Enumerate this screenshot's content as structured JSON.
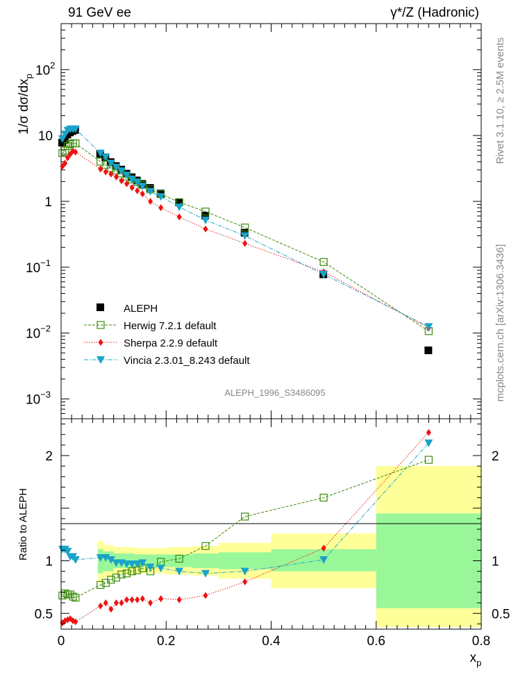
{
  "header": {
    "left": "91 GeV ee",
    "right": "γ*/Z (Hadronic)"
  },
  "side_labels": {
    "rivet": "Rivet 3.1.10, ≥ 2.5M events",
    "mcplots": "mcplots.cern.ch [arXiv:1306.3436]"
  },
  "chart_data": [
    {
      "type": "scatter",
      "panel": "main",
      "ylabel": "1/σ dσ/dx",
      "ylabel_sub": "p",
      "yscale": "log",
      "ylim": [
        0.0005,
        500
      ],
      "xlim": [
        0,
        0.8
      ],
      "ytick_labels": [
        {
          "value": 0.001,
          "base": "10",
          "exp": "−3"
        },
        {
          "value": 0.01,
          "base": "10",
          "exp": "−2"
        },
        {
          "value": 0.1,
          "base": "10",
          "exp": "−1"
        },
        {
          "value": 1,
          "base": "1",
          "exp": ""
        },
        {
          "value": 10,
          "base": "10",
          "exp": ""
        },
        {
          "value": 100,
          "base": "10",
          "exp": "2"
        }
      ],
      "watermark": "ALEPH_1996_S3486095",
      "legend_position": "lower-left",
      "series": [
        {
          "name": "ALEPH",
          "color": "#000000",
          "marker": "filled-square",
          "points": [
            [
              0.0025,
              7.7
            ],
            [
              0.0075,
              8.5
            ],
            [
              0.0125,
              10.2
            ],
            [
              0.0175,
              11.0
            ],
            [
              0.0225,
              11.6
            ],
            [
              0.0275,
              12.0
            ],
            [
              0.075,
              5.2
            ],
            [
              0.085,
              4.6
            ],
            [
              0.095,
              3.9
            ],
            [
              0.105,
              3.4
            ],
            [
              0.115,
              3.0
            ],
            [
              0.125,
              2.6
            ],
            [
              0.135,
              2.3
            ],
            [
              0.145,
              2.05
            ],
            [
              0.155,
              1.82
            ],
            [
              0.17,
              1.58
            ],
            [
              0.19,
              1.3
            ],
            [
              0.225,
              0.95
            ],
            [
              0.275,
              0.6
            ],
            [
              0.35,
              0.33
            ],
            [
              0.5,
              0.077
            ],
            [
              0.7,
              0.0054
            ]
          ]
        },
        {
          "name": "Herwig 7.2.1 default",
          "color": "#3a8a0a",
          "marker": "open-square",
          "points": [
            [
              0.0025,
              5.4
            ],
            [
              0.0075,
              5.9
            ],
            [
              0.0125,
              6.9
            ],
            [
              0.0175,
              7.4
            ],
            [
              0.0225,
              7.6
            ],
            [
              0.0275,
              7.6
            ],
            [
              0.075,
              4.0
            ],
            [
              0.085,
              3.6
            ],
            [
              0.095,
              3.2
            ],
            [
              0.105,
              2.95
            ],
            [
              0.115,
              2.65
            ],
            [
              0.125,
              2.38
            ],
            [
              0.135,
              2.15
            ],
            [
              0.145,
              1.95
            ],
            [
              0.155,
              1.78
            ],
            [
              0.17,
              1.52
            ],
            [
              0.19,
              1.29
            ],
            [
              0.225,
              0.97
            ],
            [
              0.275,
              0.7
            ],
            [
              0.35,
              0.4
            ],
            [
              0.5,
              0.12
            ],
            [
              0.7,
              0.0107
            ]
          ]
        },
        {
          "name": "Sherpa 2.2.9 default",
          "color": "#ee1111",
          "marker": "filled-diamond",
          "points": [
            [
              0.0025,
              3.4
            ],
            [
              0.0075,
              3.8
            ],
            [
              0.0125,
              4.6
            ],
            [
              0.0175,
              5.2
            ],
            [
              0.0225,
              5.8
            ],
            [
              0.0275,
              5.6
            ],
            [
              0.075,
              3.1
            ],
            [
              0.085,
              2.8
            ],
            [
              0.095,
              2.6
            ],
            [
              0.105,
              2.35
            ],
            [
              0.115,
              2.05
            ],
            [
              0.125,
              1.85
            ],
            [
              0.135,
              1.62
            ],
            [
              0.145,
              1.45
            ],
            [
              0.155,
              1.3
            ],
            [
              0.17,
              1.0
            ],
            [
              0.19,
              0.8
            ],
            [
              0.225,
              0.58
            ],
            [
              0.275,
              0.38
            ],
            [
              0.35,
              0.23
            ],
            [
              0.5,
              0.085
            ],
            [
              0.7,
              0.012
            ]
          ]
        },
        {
          "name": "Vincia 2.3.01_8.243 default",
          "color": "#1aa3c8",
          "marker": "filled-triangle-down",
          "points": [
            [
              0.0025,
              8.9
            ],
            [
              0.0075,
              10.5
            ],
            [
              0.0125,
              12.0
            ],
            [
              0.0175,
              12.5
            ],
            [
              0.0225,
              12.6
            ],
            [
              0.0275,
              12.6
            ],
            [
              0.075,
              5.4
            ],
            [
              0.085,
              4.7
            ],
            [
              0.095,
              3.8
            ],
            [
              0.105,
              3.3
            ],
            [
              0.115,
              2.9
            ],
            [
              0.125,
              2.5
            ],
            [
              0.135,
              2.18
            ],
            [
              0.145,
              1.95
            ],
            [
              0.155,
              1.7
            ],
            [
              0.17,
              1.42
            ],
            [
              0.19,
              1.18
            ],
            [
              0.225,
              0.82
            ],
            [
              0.275,
              0.52
            ],
            [
              0.35,
              0.3
            ],
            [
              0.5,
              0.078
            ],
            [
              0.7,
              0.0125
            ]
          ]
        }
      ]
    },
    {
      "type": "scatter",
      "panel": "ratio",
      "ylabel": "Ratio to ALEPH",
      "xlabel": "x",
      "xlabel_sub": "p",
      "ylim": [
        0.35,
        2.35
      ],
      "xlim": [
        0,
        0.8
      ],
      "xtick_labels": [
        "0",
        "0.2",
        "0.4",
        "0.6",
        "0.8"
      ],
      "ytick_labels": [
        "0.5",
        "1",
        "2"
      ],
      "bands": {
        "colors": {
          "inner": "#99f799",
          "outer": "#ffff99"
        },
        "bins": [
          {
            "x": [
              0.07,
              0.08
            ],
            "inner": [
              0.88,
              1.11
            ],
            "outer": [
              0.79,
              1.19
            ]
          },
          {
            "x": [
              0.08,
              0.1
            ],
            "inner": [
              0.9,
              1.09
            ],
            "outer": [
              0.84,
              1.15
            ]
          },
          {
            "x": [
              0.1,
              0.14
            ],
            "inner": [
              0.93,
              1.07
            ],
            "outer": [
              0.87,
              1.13
            ]
          },
          {
            "x": [
              0.14,
              0.2
            ],
            "inner": [
              0.94,
              1.06
            ],
            "outer": [
              0.88,
              1.12
            ]
          },
          {
            "x": [
              0.2,
              0.25
            ],
            "inner": [
              0.94,
              1.06
            ],
            "outer": [
              0.87,
              1.13
            ]
          },
          {
            "x": [
              0.25,
              0.3
            ],
            "inner": [
              0.93,
              1.07
            ],
            "outer": [
              0.86,
              1.14
            ]
          },
          {
            "x": [
              0.3,
              0.4
            ],
            "inner": [
              0.92,
              1.08
            ],
            "outer": [
              0.83,
              1.17
            ]
          },
          {
            "x": [
              0.4,
              0.6
            ],
            "inner": [
              0.9,
              1.11
            ],
            "outer": [
              0.74,
              1.26
            ]
          },
          {
            "x": [
              0.6,
              0.8
            ],
            "inner": [
              0.55,
              1.45
            ],
            "outer": [
              0.37,
              1.9
            ]
          }
        ]
      },
      "series": [
        {
          "name": "Herwig 7.2.1 default",
          "color": "#3a8a0a",
          "marker": "open-square",
          "points": [
            [
              0.0025,
              0.67
            ],
            [
              0.0075,
              0.69
            ],
            [
              0.0125,
              0.68
            ],
            [
              0.0175,
              0.68
            ],
            [
              0.0225,
              0.66
            ],
            [
              0.0275,
              0.65
            ],
            [
              0.075,
              0.77
            ],
            [
              0.085,
              0.79
            ],
            [
              0.095,
              0.82
            ],
            [
              0.105,
              0.84
            ],
            [
              0.115,
              0.87
            ],
            [
              0.125,
              0.88
            ],
            [
              0.135,
              0.9
            ],
            [
              0.145,
              0.91
            ],
            [
              0.155,
              0.93
            ],
            [
              0.17,
              0.9
            ],
            [
              0.19,
              0.99
            ],
            [
              0.225,
              1.02
            ],
            [
              0.275,
              1.14
            ],
            [
              0.35,
              1.42
            ],
            [
              0.5,
              1.6
            ],
            [
              0.7,
              1.96
            ]
          ]
        },
        {
          "name": "Sherpa 2.2.9 default",
          "color": "#ee1111",
          "marker": "filled-diamond",
          "points": [
            [
              0.0025,
              0.41
            ],
            [
              0.0075,
              0.43
            ],
            [
              0.0125,
              0.44
            ],
            [
              0.0175,
              0.45
            ],
            [
              0.0225,
              0.43
            ],
            [
              0.0275,
              0.42
            ],
            [
              0.075,
              0.57
            ],
            [
              0.085,
              0.6
            ],
            [
              0.095,
              0.54
            ],
            [
              0.105,
              0.6
            ],
            [
              0.115,
              0.6
            ],
            [
              0.125,
              0.63
            ],
            [
              0.135,
              0.63
            ],
            [
              0.145,
              0.63
            ],
            [
              0.155,
              0.64
            ],
            [
              0.17,
              0.6
            ],
            [
              0.19,
              0.64
            ],
            [
              0.225,
              0.63
            ],
            [
              0.275,
              0.67
            ],
            [
              0.35,
              0.8
            ],
            [
              0.5,
              1.12
            ],
            [
              0.7,
              2.22
            ]
          ]
        },
        {
          "name": "Vincia 2.3.01_8.243 default",
          "color": "#1aa3c8",
          "marker": "filled-triangle-down",
          "points": [
            [
              0.0025,
              1.11
            ],
            [
              0.0075,
              1.11
            ],
            [
              0.0125,
              1.09
            ],
            [
              0.0175,
              1.04
            ],
            [
              0.0225,
              1.04
            ],
            [
              0.0275,
              1.01
            ],
            [
              0.075,
              1.03
            ],
            [
              0.085,
              1.03
            ],
            [
              0.095,
              1.01
            ],
            [
              0.105,
              0.98
            ],
            [
              0.115,
              0.98
            ],
            [
              0.125,
              0.97
            ],
            [
              0.135,
              0.97
            ],
            [
              0.145,
              0.97
            ],
            [
              0.155,
              0.98
            ],
            [
              0.17,
              0.94
            ],
            [
              0.19,
              0.93
            ],
            [
              0.225,
              0.9
            ],
            [
              0.275,
              0.88
            ],
            [
              0.35,
              0.9
            ],
            [
              0.5,
              1.01
            ],
            [
              0.7,
              2.12
            ]
          ]
        }
      ]
    }
  ]
}
